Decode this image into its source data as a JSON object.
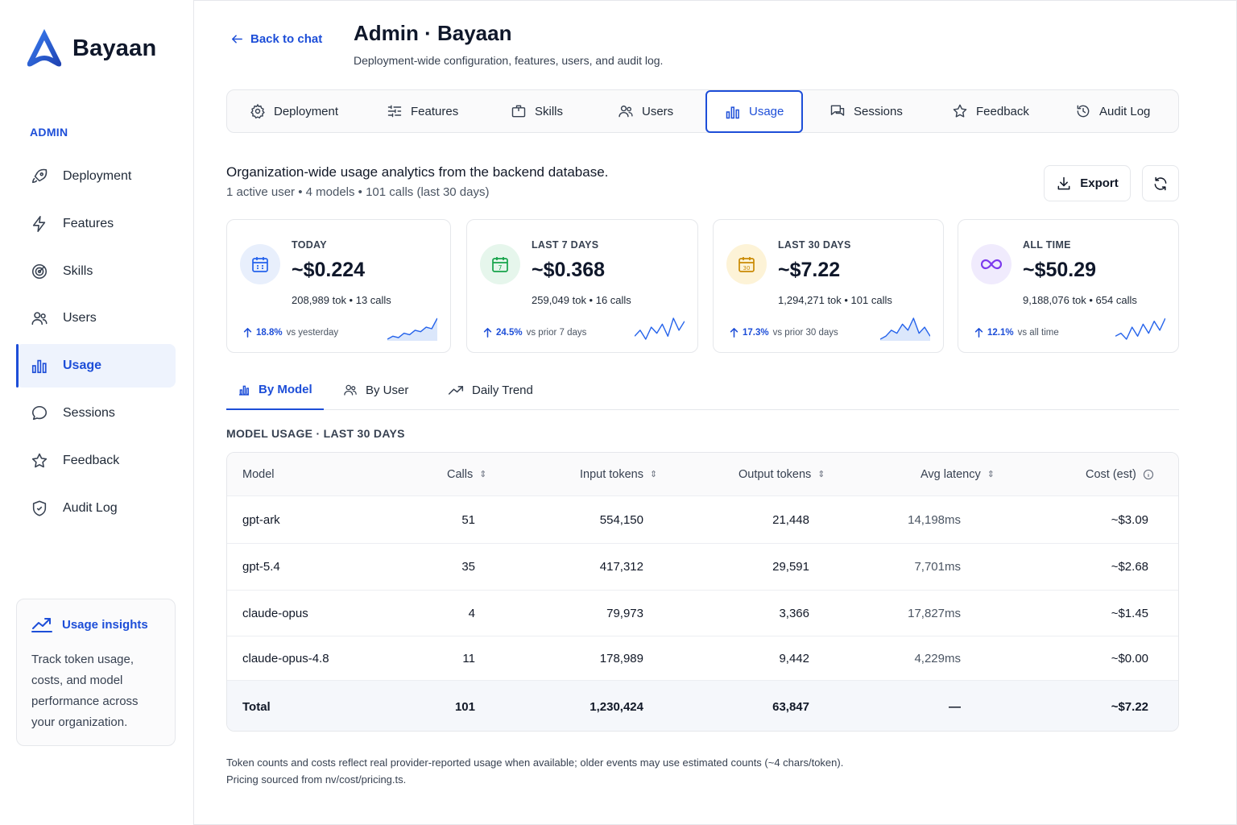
{
  "app": {
    "name": "Bayaan"
  },
  "sidebar": {
    "section_label": "ADMIN",
    "items": [
      {
        "label": "Deployment",
        "icon": "rocket-icon"
      },
      {
        "label": "Features",
        "icon": "bolt-icon"
      },
      {
        "label": "Skills",
        "icon": "target-icon"
      },
      {
        "label": "Users",
        "icon": "users-icon"
      },
      {
        "label": "Usage",
        "icon": "bar-chart-icon",
        "active": true
      },
      {
        "label": "Sessions",
        "icon": "chat-bubble-icon"
      },
      {
        "label": "Feedback",
        "icon": "star-icon"
      },
      {
        "label": "Audit Log",
        "icon": "shield-icon"
      }
    ],
    "insights": {
      "title": "Usage insights",
      "body": "Track token usage, costs, and model performance across your organization."
    }
  },
  "header": {
    "back_label": "Back to chat",
    "title": "Admin · Bayaan",
    "subtitle": "Deployment-wide configuration, features, users, and audit log."
  },
  "tabs": [
    {
      "label": "Deployment"
    },
    {
      "label": "Features"
    },
    {
      "label": "Skills"
    },
    {
      "label": "Users"
    },
    {
      "label": "Usage",
      "active": true
    },
    {
      "label": "Sessions"
    },
    {
      "label": "Feedback"
    },
    {
      "label": "Audit Log"
    }
  ],
  "intro": {
    "title": "Organization-wide usage analytics from the backend database.",
    "summary": "1 active user • 4 models • 101 calls (last 30 days)",
    "export_label": "Export"
  },
  "cards": [
    {
      "label": "TODAY",
      "value": "~$0.224",
      "meta": "208,989 tok • 13 calls",
      "delta": "18.8%",
      "delta_text": "vs yesterday",
      "accent": "#2563eb",
      "bg": "#e8effc",
      "spark": [
        2,
        3,
        2.5,
        4,
        3.5,
        5,
        4.5,
        6,
        5.5,
        9
      ]
    },
    {
      "label": "LAST 7 DAYS",
      "value": "~$0.368",
      "meta": "259,049 tok • 16 calls",
      "delta": "24.5%",
      "delta_text": "vs prior 7 days",
      "accent": "#16a34a",
      "bg": "#e6f6ec",
      "spark": [
        2,
        4,
        1,
        5,
        3,
        6,
        2,
        8,
        4,
        7
      ]
    },
    {
      "label": "LAST 30 DAYS",
      "value": "~$7.22",
      "meta": "1,294,271 tok • 101 calls",
      "delta": "17.3%",
      "delta_text": "vs prior 30 days",
      "accent": "#ca8a04",
      "bg": "#fdf3d7",
      "spark": [
        2,
        3,
        5,
        4,
        7,
        5,
        9,
        4,
        6,
        3
      ]
    },
    {
      "label": "ALL TIME",
      "value": "~$50.29",
      "meta": "9,188,076 tok • 654 calls",
      "delta": "12.1%",
      "delta_text": "vs all time",
      "accent": "#7c3aed",
      "bg": "#f0ebfd",
      "spark": [
        2,
        3,
        1,
        5,
        2,
        6,
        3,
        7,
        4,
        8
      ]
    }
  ],
  "subtabs": [
    {
      "label": "By Model",
      "active": true
    },
    {
      "label": "By User"
    },
    {
      "label": "Daily Trend"
    }
  ],
  "section_label": "MODEL USAGE · LAST 30 DAYS",
  "table": {
    "columns": [
      "Model",
      "Calls",
      "Input tokens",
      "Output tokens",
      "Avg latency",
      "Cost (est)"
    ],
    "rows": [
      [
        "gpt-ark",
        "51",
        "554,150",
        "21,448",
        "14,198ms",
        "~$3.09"
      ],
      [
        "gpt-5.4",
        "35",
        "417,312",
        "29,591",
        "7,701ms",
        "~$2.68"
      ],
      [
        "claude-opus",
        "4",
        "79,973",
        "3,366",
        "17,827ms",
        "~$1.45"
      ],
      [
        "claude-opus-4.8",
        "11",
        "178,989",
        "9,442",
        "4,229ms",
        "~$0.00"
      ]
    ],
    "total": [
      "Total",
      "101",
      "1,230,424",
      "63,847",
      "—",
      "~$7.22"
    ]
  },
  "footnote": {
    "line1": "Token counts and costs reflect real provider-reported usage when available; older events may use estimated counts (~4 chars/token).",
    "line2": "Pricing sourced from nv/cost/pricing.ts."
  }
}
